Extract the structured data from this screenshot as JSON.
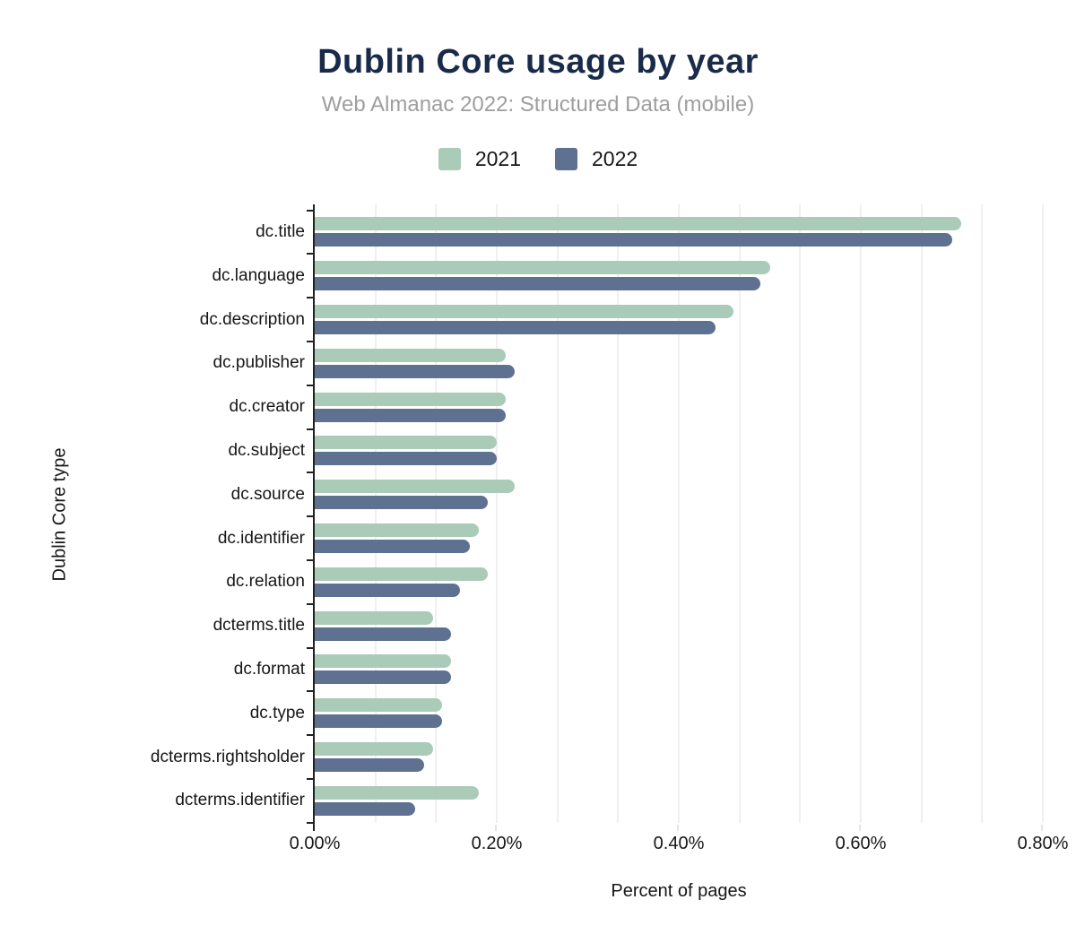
{
  "header": {
    "title": "Dublin Core usage by year",
    "subtitle": "Web Almanac 2022: Structured Data (mobile)"
  },
  "chart_data": {
    "type": "bar",
    "orientation": "horizontal",
    "title": "Dublin Core usage by year",
    "subtitle": "Web Almanac 2022: Structured Data (mobile)",
    "xlabel": "Percent of pages",
    "ylabel": "Dublin Core type",
    "xlim": [
      0,
      0.8
    ],
    "x_unit": "percent",
    "grid": "minor vertical gridlines, major step 0.20% divided in thirds",
    "legend_position": "top-center",
    "x_ticks": [
      {
        "value": 0.0,
        "label": "0.00%"
      },
      {
        "value": 0.2,
        "label": "0.20%"
      },
      {
        "value": 0.4,
        "label": "0.40%"
      },
      {
        "value": 0.6,
        "label": "0.60%"
      },
      {
        "value": 0.8,
        "label": "0.80%"
      }
    ],
    "categories": [
      "dc.title",
      "dc.language",
      "dc.description",
      "dc.publisher",
      "dc.creator",
      "dc.subject",
      "dc.source",
      "dc.identifier",
      "dc.relation",
      "dcterms.title",
      "dc.format",
      "dc.type",
      "dcterms.rightsholder",
      "dcterms.identifier"
    ],
    "series": [
      {
        "name": "2021",
        "color": "#a9cbb8",
        "values": [
          0.71,
          0.5,
          0.46,
          0.21,
          0.21,
          0.2,
          0.22,
          0.18,
          0.19,
          0.13,
          0.15,
          0.14,
          0.13,
          0.18
        ]
      },
      {
        "name": "2022",
        "color": "#5e7191",
        "values": [
          0.7,
          0.49,
          0.44,
          0.22,
          0.21,
          0.2,
          0.19,
          0.17,
          0.16,
          0.15,
          0.15,
          0.14,
          0.12,
          0.11
        ]
      }
    ]
  },
  "style": {
    "title_color": "#1a2b49",
    "subtitle_color": "#9e9e9e",
    "axis_color": "#212121",
    "gridline_color": "#f1efef",
    "label_color": "#161616",
    "background": "#ffffff"
  }
}
